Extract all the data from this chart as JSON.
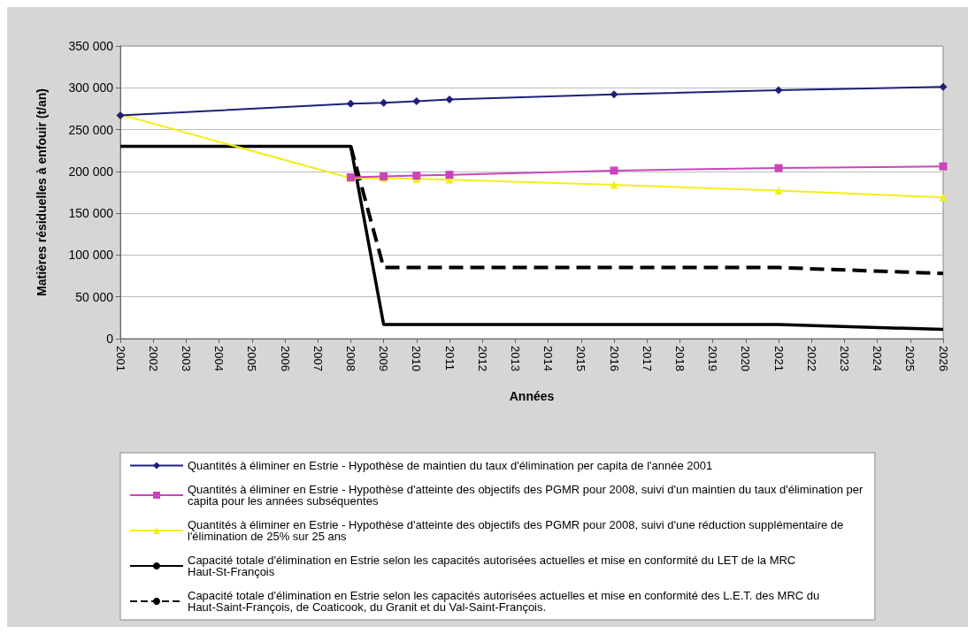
{
  "chart_data": {
    "type": "line",
    "xlabel": "Années",
    "ylabel": "Matières résiduelles à enfouir (t/an)",
    "categories": [
      "2001",
      "2002",
      "2003",
      "2004",
      "2005",
      "2006",
      "2007",
      "2008",
      "2009",
      "2010",
      "2011",
      "2012",
      "2013",
      "2014",
      "2015",
      "2016",
      "2017",
      "2018",
      "2019",
      "2020",
      "2021",
      "2022",
      "2023",
      "2024",
      "2025",
      "2026"
    ],
    "ylim": [
      0,
      350000
    ],
    "yticks": [
      {
        "value": 0,
        "label": "0"
      },
      {
        "value": 50000,
        "label": "50 000"
      },
      {
        "value": 100000,
        "label": "100 000"
      },
      {
        "value": 150000,
        "label": "150 000"
      },
      {
        "value": 200000,
        "label": "200 000"
      },
      {
        "value": 250000,
        "label": "250 000"
      },
      {
        "value": 300000,
        "label": "300 000"
      },
      {
        "value": 350000,
        "label": "350 000"
      }
    ],
    "grid": "y",
    "legend": "bottom",
    "series": [
      {
        "name": "Quantités à éliminer en Estrie - Hypothèse de maintien du taux d'élimination per capita de l'année 2001",
        "color": "#1f1f7a",
        "marker": "diamond",
        "line_style": "solid",
        "values": [
          267000,
          null,
          null,
          null,
          null,
          null,
          null,
          281000,
          282000,
          284000,
          286000,
          null,
          null,
          null,
          null,
          292000,
          null,
          null,
          null,
          null,
          297000,
          null,
          null,
          null,
          null,
          301000
        ]
      },
      {
        "name": "Quantités à éliminer en Estrie - Hypothèse d'atteinte des objectifs des PGMR pour 2008, suivi d'un maintien du taux d'élimination per capita pour les années subséquentes",
        "color": "#cc44bb",
        "marker": "square",
        "line_style": "solid",
        "values": [
          null,
          null,
          null,
          null,
          null,
          null,
          null,
          193000,
          194000,
          195000,
          196000,
          null,
          null,
          null,
          null,
          201000,
          null,
          null,
          null,
          null,
          204000,
          null,
          null,
          null,
          null,
          206000
        ]
      },
      {
        "name": "Quantités à éliminer en Estrie - Hypothèse d'atteinte des objectifs des PGMR pour 2008, suivi d'une réduction supplémentaire de l'élimination de 25% sur 25 ans",
        "color": "#f2ee1a",
        "marker": "triangle",
        "line_style": "solid",
        "values": [
          268000,
          null,
          null,
          null,
          null,
          null,
          null,
          192000,
          192000,
          191000,
          190000,
          null,
          null,
          null,
          null,
          184000,
          null,
          null,
          null,
          null,
          177000,
          null,
          null,
          null,
          null,
          169000
        ]
      },
      {
        "name": "Capacité totale d'élimination en Estrie selon les capacités autorisées actuelles et mise en conformité du LET de la MRC Haut-St-François",
        "color": "#000000",
        "marker": "none",
        "line_style": "solid",
        "values": [
          230000,
          null,
          null,
          null,
          null,
          null,
          null,
          230000,
          17000,
          null,
          null,
          null,
          null,
          null,
          null,
          null,
          null,
          null,
          null,
          null,
          17000,
          null,
          null,
          null,
          null,
          11000
        ]
      },
      {
        "name": "Capacité totale d'élimination en Estrie selon les capacités autorisées actuelles et mise en conformité des L.E.T. des MRC du Haut-Saint-François, de Coaticook, du Granit et du Val-Saint-François.",
        "color": "#000000",
        "marker": "none",
        "line_style": "dashed",
        "values": [
          null,
          null,
          null,
          null,
          null,
          null,
          null,
          230000,
          85000,
          null,
          null,
          null,
          null,
          null,
          null,
          null,
          null,
          null,
          null,
          null,
          85000,
          null,
          null,
          null,
          null,
          78000
        ]
      }
    ]
  }
}
